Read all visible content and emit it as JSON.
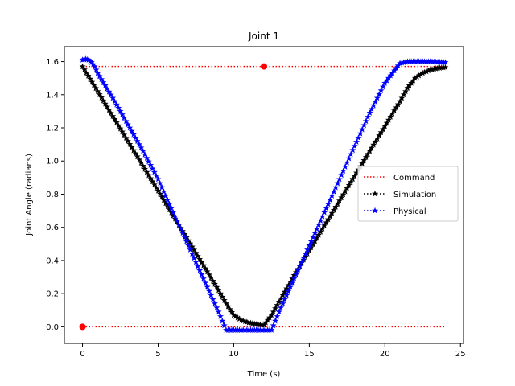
{
  "chart_data": {
    "type": "line",
    "title": "Joint 1",
    "xlabel": "Time (s)",
    "ylabel": "Joint Angle (radians)",
    "xlim": [
      -1.2,
      25.2
    ],
    "ylim": [
      -0.1,
      1.69
    ],
    "xticks": [
      0,
      5,
      10,
      15,
      20,
      25
    ],
    "xtick_labels": [
      "0",
      "5",
      "10",
      "15",
      "20",
      "25"
    ],
    "yticks": [
      0.0,
      0.2,
      0.4,
      0.6,
      0.8,
      1.0,
      1.2,
      1.4,
      1.6
    ],
    "ytick_labels": [
      "0.0",
      "0.2",
      "0.4",
      "0.6",
      "0.8",
      "1.0",
      "1.2",
      "1.4",
      "1.6"
    ],
    "grid": false,
    "legend_position": "center-right",
    "series": [
      {
        "name": "Command",
        "color": "#ff0000",
        "style": "dotted",
        "marker": "none",
        "segments": [
          {
            "x": [
              0,
              24
            ],
            "y": [
              0.0,
              0.0
            ]
          },
          {
            "x": [
              0,
              24
            ],
            "y": [
              1.5708,
              1.5708
            ]
          }
        ],
        "points": [
          {
            "x": 0,
            "y": 0.0
          },
          {
            "x": 12,
            "y": 1.5708
          }
        ]
      },
      {
        "name": "Simulation",
        "color": "#000000",
        "style": "dotted",
        "marker": "star",
        "x": [
          0,
          1,
          2,
          3,
          4,
          5,
          6,
          7,
          8,
          9,
          9.5,
          10,
          10.5,
          11,
          11.5,
          12,
          12.5,
          13,
          14,
          15,
          16,
          17,
          18,
          19,
          20,
          21,
          21.5,
          22,
          22.5,
          23,
          23.5,
          24
        ],
        "y": [
          1.57,
          1.42,
          1.27,
          1.12,
          0.97,
          0.82,
          0.67,
          0.52,
          0.37,
          0.22,
          0.14,
          0.07,
          0.04,
          0.025,
          0.015,
          0.01,
          0.07,
          0.15,
          0.31,
          0.46,
          0.61,
          0.76,
          0.91,
          1.06,
          1.21,
          1.36,
          1.44,
          1.5,
          1.53,
          1.55,
          1.56,
          1.565
        ]
      },
      {
        "name": "Physical",
        "color": "#0000ff",
        "style": "dotted",
        "marker": "star",
        "x": [
          0,
          0.2,
          0.4,
          0.6,
          0.8,
          1,
          2,
          3,
          4,
          5,
          6,
          7,
          8,
          9,
          9.5,
          10,
          11,
          12,
          12.5,
          13,
          14,
          15,
          16,
          17,
          18,
          19,
          20,
          21,
          21.5,
          22,
          23,
          24
        ],
        "y": [
          1.61,
          1.615,
          1.61,
          1.595,
          1.57,
          1.53,
          1.38,
          1.22,
          1.06,
          0.89,
          0.69,
          0.49,
          0.29,
          0.09,
          -0.02,
          -0.02,
          -0.02,
          -0.02,
          -0.02,
          0.09,
          0.29,
          0.49,
          0.69,
          0.89,
          1.09,
          1.29,
          1.47,
          1.59,
          1.6,
          1.6,
          1.6,
          1.595
        ]
      }
    ]
  }
}
